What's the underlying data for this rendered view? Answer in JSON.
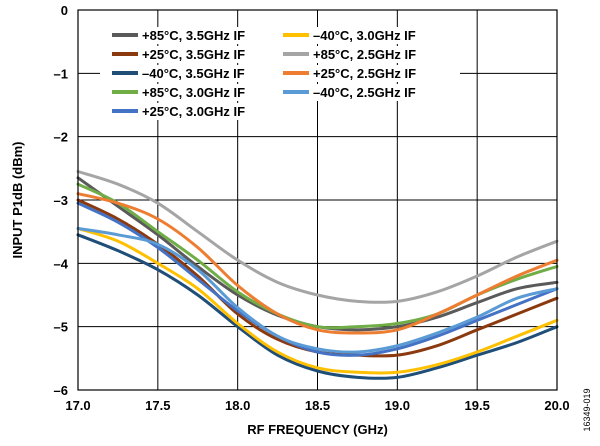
{
  "chart_data": {
    "type": "line",
    "xlabel": "RF FREQUENCY (GHz)",
    "ylabel": "INPUT P1dB (dBm)",
    "xlim": [
      17.0,
      20.0
    ],
    "ylim": [
      -6,
      0
    ],
    "x_ticks": [
      "17.0",
      "17.5",
      "18.0",
      "18.5",
      "19.0",
      "19.5",
      "20.0"
    ],
    "y_ticks": [
      "0",
      "–1",
      "–2",
      "–3",
      "–4",
      "–5",
      "–6"
    ],
    "grid": true,
    "legend_position": "top",
    "figure_id": "16349-019",
    "x": [
      17.0,
      17.25,
      17.5,
      17.75,
      18.0,
      18.25,
      18.5,
      18.75,
      19.0,
      19.25,
      19.5,
      19.75,
      20.0
    ],
    "series": [
      {
        "name": "+85°C, 3.5GHz IF",
        "color": "#5a5a5a",
        "values": [
          -2.65,
          -3.1,
          -3.55,
          -4.05,
          -4.5,
          -4.82,
          -5.0,
          -5.05,
          -5.0,
          -4.85,
          -4.62,
          -4.4,
          -4.3
        ]
      },
      {
        "name": "+25°C, 3.5GHz IF",
        "color": "#8b3a0f",
        "values": [
          -3.0,
          -3.3,
          -3.7,
          -4.2,
          -4.8,
          -5.2,
          -5.4,
          -5.45,
          -5.45,
          -5.3,
          -5.05,
          -4.8,
          -4.55
        ]
      },
      {
        "name": "–40°C, 3.5GHz IF",
        "color": "#1f4e79",
        "values": [
          -3.55,
          -3.8,
          -4.1,
          -4.5,
          -5.0,
          -5.45,
          -5.7,
          -5.8,
          -5.8,
          -5.65,
          -5.45,
          -5.25,
          -5.0
        ]
      },
      {
        "name": "+85°C, 3.0GHz IF",
        "color": "#70ad47",
        "values": [
          -2.75,
          -3.05,
          -3.5,
          -3.95,
          -4.45,
          -4.8,
          -5.0,
          -5.0,
          -4.95,
          -4.8,
          -4.5,
          -4.25,
          -4.05
        ]
      },
      {
        "name": "+25°C, 3.0GHz IF",
        "color": "#4472c4",
        "values": [
          -3.05,
          -3.35,
          -3.75,
          -4.25,
          -4.75,
          -5.15,
          -5.4,
          -5.45,
          -5.35,
          -5.15,
          -4.9,
          -4.65,
          -4.4
        ]
      },
      {
        "name": "–40°C, 3.0GHz IF",
        "color": "#ffc000",
        "values": [
          -3.45,
          -3.65,
          -4.0,
          -4.4,
          -4.95,
          -5.4,
          -5.65,
          -5.72,
          -5.72,
          -5.6,
          -5.4,
          -5.15,
          -4.9
        ]
      },
      {
        "name": "+85°C, 2.5GHz IF",
        "color": "#a5a5a5",
        "values": [
          -2.55,
          -2.75,
          -3.05,
          -3.5,
          -3.95,
          -4.3,
          -4.5,
          -4.6,
          -4.6,
          -4.45,
          -4.2,
          -3.9,
          -3.65
        ]
      },
      {
        "name": "+25°C, 2.5GHz IF",
        "color": "#ed7d31",
        "values": [
          -2.9,
          -3.05,
          -3.3,
          -3.75,
          -4.35,
          -4.8,
          -5.05,
          -5.1,
          -5.05,
          -4.8,
          -4.5,
          -4.2,
          -3.95
        ]
      },
      {
        "name": "–40°C, 2.5GHz IF",
        "color": "#5b9bd5",
        "values": [
          -3.45,
          -3.55,
          -3.7,
          -4.1,
          -4.7,
          -5.15,
          -5.35,
          -5.4,
          -5.3,
          -5.1,
          -4.85,
          -4.55,
          -4.4
        ]
      }
    ]
  }
}
